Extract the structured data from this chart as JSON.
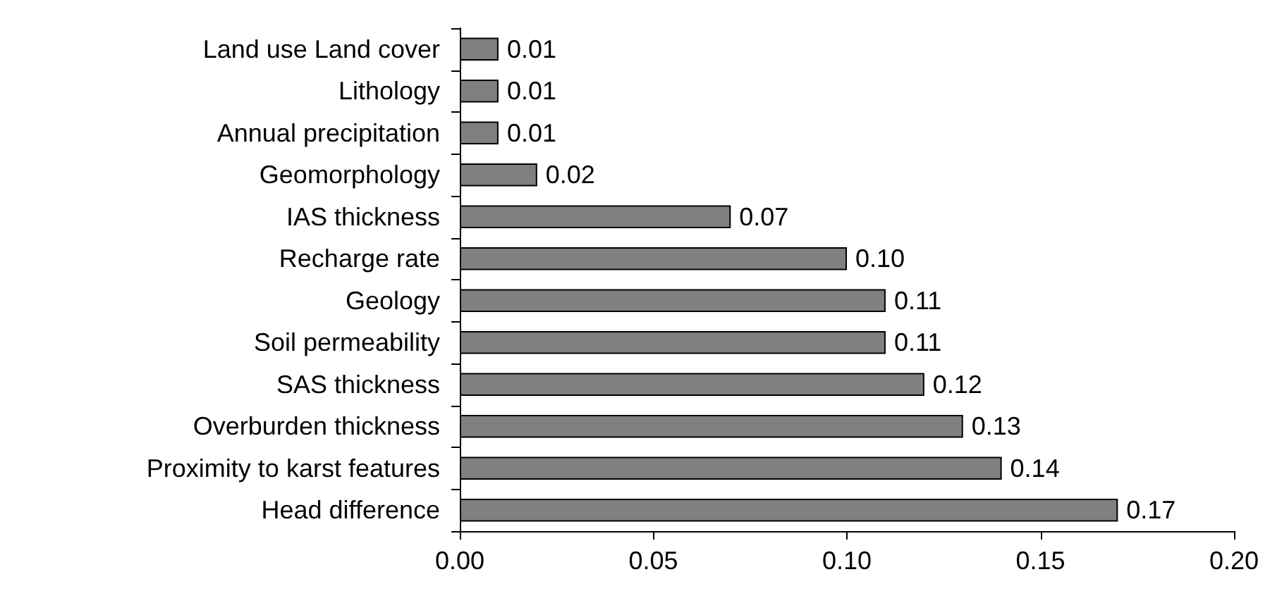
{
  "chart_data": {
    "type": "bar",
    "orientation": "horizontal",
    "categories": [
      "Land use Land cover",
      "Lithology",
      "Annual precipitation",
      "Geomorphology",
      "IAS thickness",
      "Recharge rate",
      "Geology",
      "Soil permeability",
      "SAS thickness",
      "Overburden thickness",
      "Proximity to karst features",
      "Head difference"
    ],
    "values": [
      0.01,
      0.01,
      0.01,
      0.02,
      0.07,
      0.1,
      0.11,
      0.11,
      0.12,
      0.13,
      0.14,
      0.17
    ],
    "value_labels": [
      "0.01",
      "0.01",
      "0.01",
      "0.02",
      "0.07",
      "0.10",
      "0.11",
      "0.11",
      "0.12",
      "0.13",
      "0.14",
      "0.17"
    ],
    "color": "#808080",
    "xlim": [
      0,
      0.2
    ],
    "xticks": [
      {
        "value": 0,
        "label": "0.00"
      },
      {
        "value": 0.05,
        "label": "0.05"
      },
      {
        "value": 0.1,
        "label": "0.10"
      },
      {
        "value": 0.15,
        "label": "0.15"
      },
      {
        "value": 0.2,
        "label": "0.20"
      }
    ],
    "grid": false
  }
}
